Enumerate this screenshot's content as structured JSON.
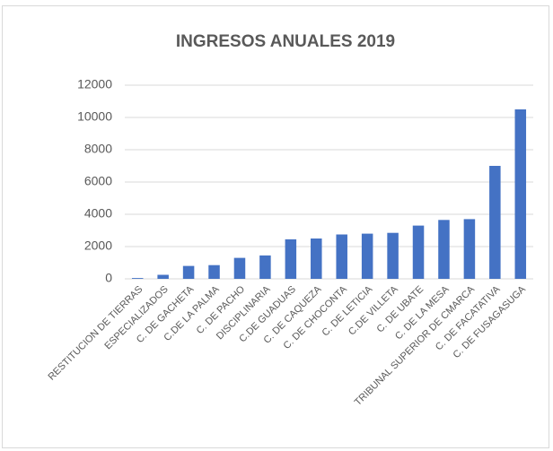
{
  "chart_data": {
    "type": "bar",
    "title": "INGRESOS ANUALES 2019",
    "categories": [
      "RESTITUCION DE TIERRAS",
      "ESPECIALIZADOS",
      "C. DE GACHETA",
      "C.DE LA PALMA",
      "C. DE PACHO",
      "DISCIPLINARIA",
      "C.DE GUADUAS",
      "C. DE CAQUEZA",
      "C. DE CHOCONTA",
      "C. DE LETICIA",
      "C.DE VILLETA",
      "C. DE UBATE",
      "C. DE LA MESA",
      "TRIBUNAL SUPERIOR DE CMARCA",
      "C. DE FACATATIVA",
      "C. DE FUSAGASUGA"
    ],
    "values": [
      50,
      250,
      800,
      850,
      1300,
      1450,
      2450,
      2500,
      2750,
      2800,
      2850,
      3300,
      3650,
      3700,
      7000,
      10500
    ],
    "color": "#4472c4",
    "ylim": [
      0,
      12000
    ],
    "yticks": [
      0,
      2000,
      4000,
      6000,
      8000,
      10000,
      12000
    ],
    "grid": true
  }
}
